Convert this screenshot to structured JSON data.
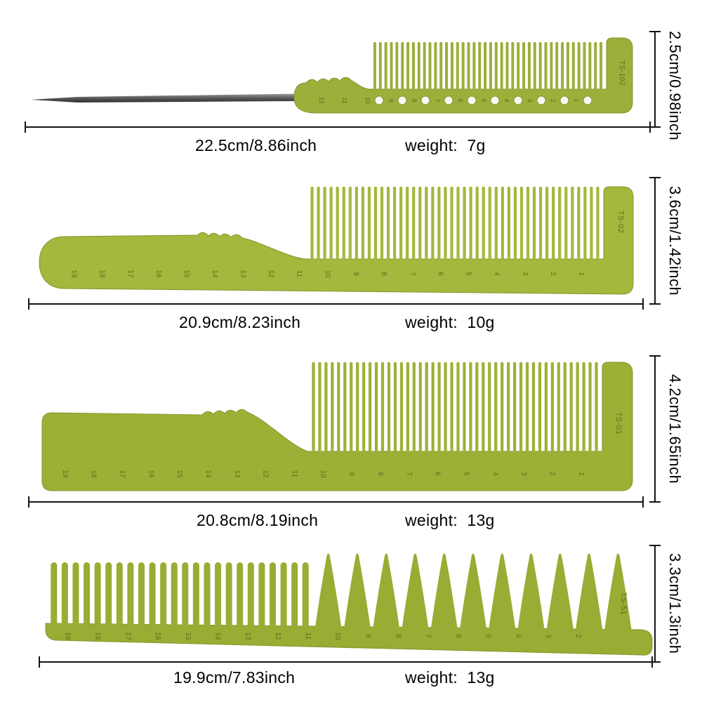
{
  "colors": {
    "comb_green_1": "#9dae3b",
    "comb_green_2": "#a3b83c",
    "comb_green_3": "#9bb136",
    "comb_green_4": "#97ad33",
    "comb_stroke": "#84952c",
    "ruler_text": "#5f6d1c",
    "dimension_ink": "#141414",
    "hole_fill": "#f7f8f2"
  },
  "products": [
    {
      "model": "TS-102",
      "length_label": "22.5cm/8.86inch",
      "weight_label": "weight:  7g",
      "height_label": "2.5cm/0.98inch",
      "ruler_numbers": [
        "12",
        "11",
        "10",
        "9",
        "8",
        "7",
        "6",
        "5",
        "4",
        "3",
        "2",
        "1"
      ]
    },
    {
      "model": "TS-02",
      "length_label": "20.9cm/8.23inch",
      "weight_label": "weight:  10g",
      "height_label": "3.6cm/1.42inch",
      "ruler_numbers": [
        "19",
        "18",
        "17",
        "16",
        "15",
        "14",
        "13",
        "12",
        "11",
        "10",
        "9",
        "8",
        "7",
        "6",
        "5",
        "4",
        "3",
        "2",
        "1"
      ]
    },
    {
      "model": "TS-01",
      "length_label": "20.8cm/8.19inch",
      "weight_label": "weight:  13g",
      "height_label": "4.2cm/1.65inch",
      "ruler_numbers": [
        "19",
        "18",
        "17",
        "16",
        "15",
        "14",
        "13",
        "12",
        "11",
        "10",
        "9",
        "8",
        "7",
        "6",
        "5",
        "4",
        "3",
        "2",
        "1"
      ]
    },
    {
      "model": "TS-51",
      "length_label": "19.9cm/7.83inch",
      "weight_label": "weight:  13g",
      "height_label": "3.3cm/1.3inch",
      "ruler_numbers": [
        "19",
        "18",
        "17",
        "16",
        "15",
        "14",
        "13",
        "12",
        "11",
        "10",
        "9",
        "8",
        "7",
        "6",
        "5",
        "4",
        "3",
        "2"
      ]
    }
  ]
}
